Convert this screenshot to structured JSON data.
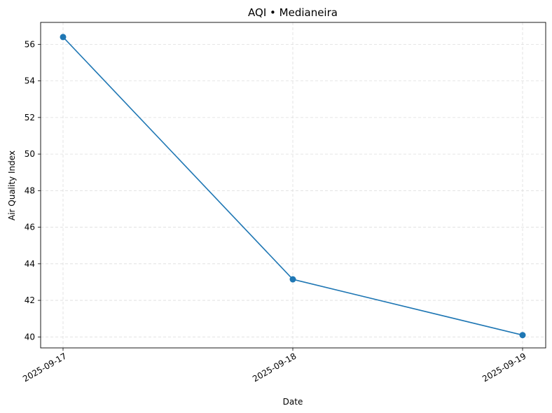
{
  "chart_data": {
    "type": "line",
    "title": "AQI • Medianeira",
    "xlabel": "Date",
    "ylabel": "Air Quality Index",
    "x": [
      "2025-09-17",
      "2025-09-18",
      "2025-09-19"
    ],
    "series": [
      {
        "values": [
          56.4,
          43.15,
          40.1
        ],
        "color": "#1f77b4",
        "marker": "circle"
      }
    ],
    "ylim": [
      39.4,
      57.2
    ],
    "yticks": [
      40,
      42,
      44,
      46,
      48,
      50,
      52,
      54,
      56
    ],
    "grid": true,
    "legend": "none"
  }
}
